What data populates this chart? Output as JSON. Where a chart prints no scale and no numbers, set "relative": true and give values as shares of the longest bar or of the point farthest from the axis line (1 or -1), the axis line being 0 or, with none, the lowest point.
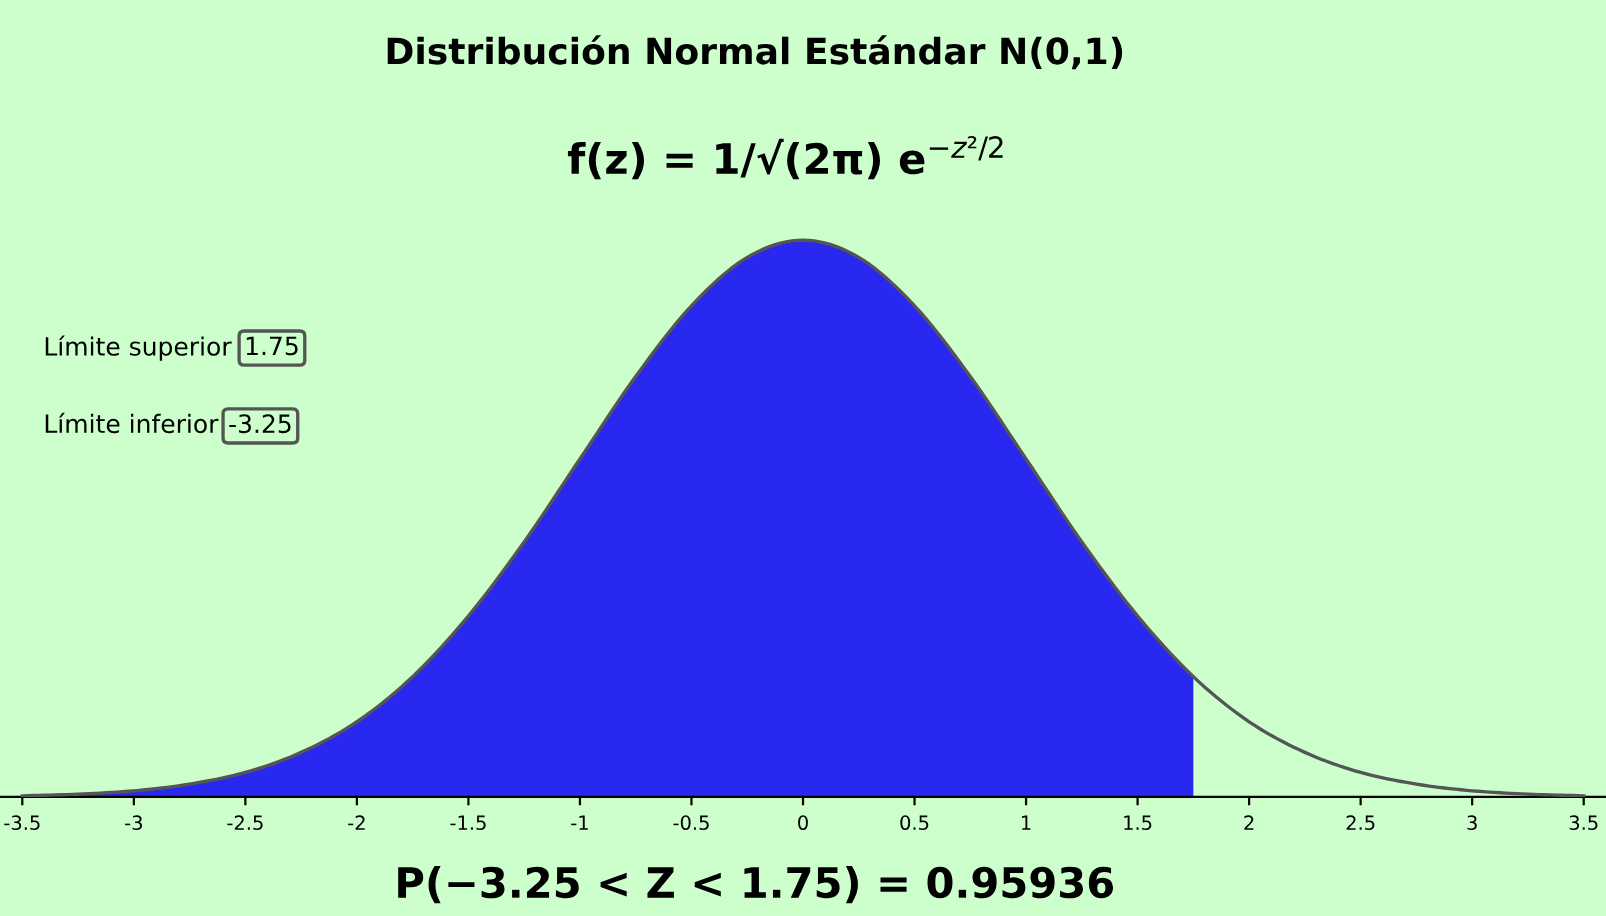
{
  "chart_data": {
    "type": "line",
    "title": "Distribución Normal Estándar N(0,1)",
    "relative": true,
    "annotations": [
      "f(z) = 1/√(2π) e$^{−z²/2}$",
      "Límite superior",
      "1.75",
      "Límite inferior",
      "-3.25",
      "P(−3.25 < Z < 1.75) = 0.95936"
    ],
    "xlim": [
      -3.6,
      3.6
    ],
    "xticks": [
      -3.5,
      -3,
      -2.5,
      -2,
      -1.5,
      -1,
      -0.5,
      0,
      0.5,
      1,
      1.5,
      2,
      2.5,
      3,
      3.5
    ],
    "tick_labels": "x",
    "grid": false,
    "legend": false,
    "series": [
      {
        "type": "area",
        "color": "#2828f0",
        "x": [
          -3.25,
          -3,
          -2.75,
          -2.5,
          -2.25,
          -2,
          -1.75,
          -1.5,
          -1.25,
          -1,
          -0.75,
          -0.5,
          -0.25,
          0,
          0.25,
          0.5,
          0.75,
          1,
          1.25,
          1.5,
          1.75
        ],
        "values": [
          0.005,
          0.011,
          0.023,
          0.044,
          0.08,
          0.135,
          0.216,
          0.325,
          0.458,
          0.607,
          0.755,
          0.882,
          0.969,
          1,
          0.969,
          0.882,
          0.755,
          0.607,
          0.458,
          0.325,
          0.216
        ]
      },
      {
        "color": "#555555",
        "x": [
          -3.5,
          -3.25,
          -3,
          -2.75,
          -2.5,
          -2.25,
          -2,
          -1.75,
          -1.5,
          -1.25,
          -1,
          -0.75,
          -0.5,
          -0.25,
          0,
          0.25,
          0.5,
          0.75,
          1,
          1.25,
          1.5,
          1.75,
          2,
          2.25,
          2.5,
          2.75,
          3,
          3.25,
          3.5
        ],
        "values": [
          0.002,
          0.005,
          0.011,
          0.023,
          0.044,
          0.08,
          0.135,
          0.216,
          0.325,
          0.458,
          0.607,
          0.755,
          0.882,
          0.969,
          1,
          0.969,
          0.882,
          0.755,
          0.607,
          0.458,
          0.325,
          0.216,
          0.135,
          0.08,
          0.044,
          0.023,
          0.011,
          0.005,
          0.002
        ]
      }
    ]
  }
}
